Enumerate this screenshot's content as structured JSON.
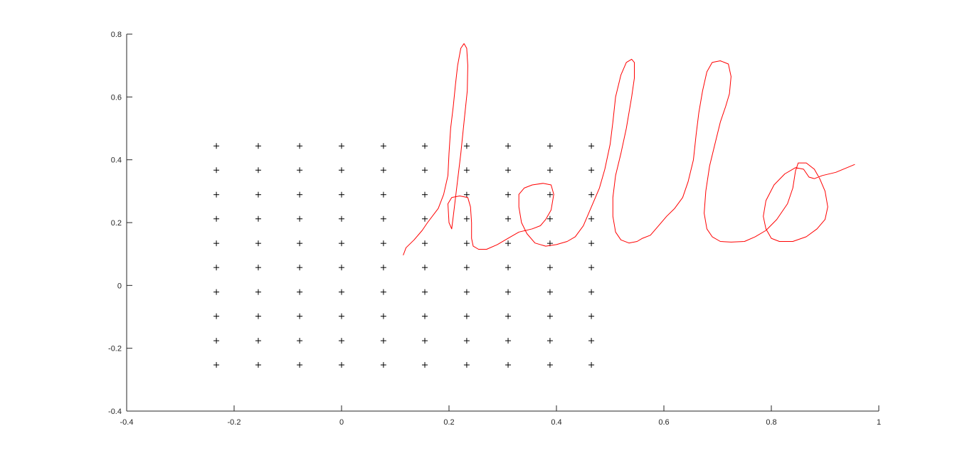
{
  "chart_data": {
    "type": "scatter",
    "title": "",
    "xlabel": "",
    "ylabel": "",
    "xlim": [
      -0.4,
      1.0
    ],
    "ylim": [
      -0.4,
      0.8
    ],
    "grid": false,
    "box": false,
    "x_ticks": [
      -0.4,
      -0.2,
      0,
      0.2,
      0.4,
      0.6,
      0.8,
      1.0
    ],
    "x_tick_labels": [
      "-0.4",
      "-0.2",
      "0",
      "0.2",
      "0.4",
      "0.6",
      "0.8",
      "1"
    ],
    "y_ticks": [
      -0.4,
      -0.2,
      0,
      0.2,
      0.4,
      0.6,
      0.8
    ],
    "y_tick_labels": [
      "-0.4",
      "-0.2",
      "0",
      "0.2",
      "0.4",
      "0.6",
      "0.8"
    ],
    "series": [
      {
        "marker": "plus",
        "color": "#000000",
        "grid_x": [
          -0.233,
          -0.155,
          -0.078,
          0,
          0.078,
          0.155,
          0.233,
          0.31,
          0.388,
          0.465
        ],
        "grid_y": [
          0.444,
          0.367,
          0.289,
          0.212,
          0.134,
          0.057,
          -0.021,
          -0.098,
          -0.176,
          -0.253
        ]
      },
      {
        "marker": "none",
        "line": "solid",
        "color": "#ff0000",
        "points": [
          [
            0.115,
            0.097
          ],
          [
            0.12,
            0.12
          ],
          [
            0.135,
            0.145
          ],
          [
            0.15,
            0.175
          ],
          [
            0.16,
            0.2
          ],
          [
            0.18,
            0.245
          ],
          [
            0.19,
            0.29
          ],
          [
            0.198,
            0.35
          ],
          [
            0.2,
            0.42
          ],
          [
            0.203,
            0.5
          ],
          [
            0.208,
            0.57
          ],
          [
            0.212,
            0.64
          ],
          [
            0.216,
            0.7
          ],
          [
            0.222,
            0.755
          ],
          [
            0.228,
            0.77
          ],
          [
            0.233,
            0.755
          ],
          [
            0.235,
            0.7
          ],
          [
            0.234,
            0.62
          ],
          [
            0.228,
            0.52
          ],
          [
            0.222,
            0.42
          ],
          [
            0.215,
            0.32
          ],
          [
            0.208,
            0.22
          ],
          [
            0.205,
            0.18
          ],
          [
            0.2,
            0.2
          ],
          [
            0.198,
            0.26
          ],
          [
            0.205,
            0.28
          ],
          [
            0.22,
            0.285
          ],
          [
            0.235,
            0.28
          ],
          [
            0.24,
            0.25
          ],
          [
            0.242,
            0.2
          ],
          [
            0.242,
            0.15
          ],
          [
            0.245,
            0.125
          ],
          [
            0.255,
            0.115
          ],
          [
            0.27,
            0.115
          ],
          [
            0.29,
            0.13
          ],
          [
            0.31,
            0.15
          ],
          [
            0.33,
            0.17
          ],
          [
            0.355,
            0.18
          ],
          [
            0.37,
            0.19
          ],
          [
            0.38,
            0.21
          ],
          [
            0.39,
            0.24
          ],
          [
            0.395,
            0.29
          ],
          [
            0.39,
            0.32
          ],
          [
            0.375,
            0.325
          ],
          [
            0.355,
            0.32
          ],
          [
            0.34,
            0.31
          ],
          [
            0.33,
            0.29
          ],
          [
            0.33,
            0.25
          ],
          [
            0.335,
            0.2
          ],
          [
            0.345,
            0.165
          ],
          [
            0.36,
            0.135
          ],
          [
            0.38,
            0.125
          ],
          [
            0.4,
            0.13
          ],
          [
            0.42,
            0.14
          ],
          [
            0.435,
            0.155
          ],
          [
            0.45,
            0.19
          ],
          [
            0.465,
            0.25
          ],
          [
            0.48,
            0.31
          ],
          [
            0.49,
            0.37
          ],
          [
            0.5,
            0.45
          ],
          [
            0.505,
            0.52
          ],
          [
            0.51,
            0.6
          ],
          [
            0.52,
            0.67
          ],
          [
            0.53,
            0.71
          ],
          [
            0.54,
            0.72
          ],
          [
            0.545,
            0.71
          ],
          [
            0.545,
            0.66
          ],
          [
            0.54,
            0.6
          ],
          [
            0.53,
            0.5
          ],
          [
            0.52,
            0.42
          ],
          [
            0.51,
            0.35
          ],
          [
            0.505,
            0.28
          ],
          [
            0.505,
            0.22
          ],
          [
            0.51,
            0.17
          ],
          [
            0.52,
            0.145
          ],
          [
            0.535,
            0.135
          ],
          [
            0.55,
            0.14
          ],
          [
            0.56,
            0.15
          ],
          [
            0.575,
            0.16
          ],
          [
            0.59,
            0.19
          ],
          [
            0.605,
            0.22
          ],
          [
            0.62,
            0.245
          ],
          [
            0.635,
            0.28
          ],
          [
            0.645,
            0.33
          ],
          [
            0.655,
            0.4
          ],
          [
            0.66,
            0.48
          ],
          [
            0.665,
            0.55
          ],
          [
            0.672,
            0.62
          ],
          [
            0.68,
            0.68
          ],
          [
            0.69,
            0.71
          ],
          [
            0.705,
            0.715
          ],
          [
            0.72,
            0.705
          ],
          [
            0.725,
            0.665
          ],
          [
            0.722,
            0.61
          ],
          [
            0.715,
            0.57
          ],
          [
            0.705,
            0.52
          ],
          [
            0.695,
            0.45
          ],
          [
            0.685,
            0.38
          ],
          [
            0.678,
            0.3
          ],
          [
            0.675,
            0.23
          ],
          [
            0.68,
            0.18
          ],
          [
            0.69,
            0.155
          ],
          [
            0.705,
            0.14
          ],
          [
            0.725,
            0.138
          ],
          [
            0.75,
            0.14
          ],
          [
            0.77,
            0.155
          ],
          [
            0.79,
            0.175
          ],
          [
            0.81,
            0.21
          ],
          [
            0.83,
            0.26
          ],
          [
            0.84,
            0.31
          ],
          [
            0.845,
            0.365
          ],
          [
            0.85,
            0.39
          ],
          [
            0.865,
            0.39
          ],
          [
            0.88,
            0.37
          ],
          [
            0.89,
            0.34
          ],
          [
            0.9,
            0.3
          ],
          [
            0.905,
            0.25
          ],
          [
            0.9,
            0.21
          ],
          [
            0.885,
            0.18
          ],
          [
            0.865,
            0.155
          ],
          [
            0.84,
            0.14
          ],
          [
            0.815,
            0.14
          ],
          [
            0.8,
            0.15
          ],
          [
            0.79,
            0.18
          ],
          [
            0.785,
            0.22
          ],
          [
            0.79,
            0.27
          ],
          [
            0.805,
            0.32
          ],
          [
            0.825,
            0.355
          ],
          [
            0.845,
            0.375
          ],
          [
            0.86,
            0.37
          ],
          [
            0.87,
            0.345
          ],
          [
            0.88,
            0.34
          ],
          [
            0.895,
            0.35
          ],
          [
            0.92,
            0.36
          ],
          [
            0.955,
            0.385
          ]
        ]
      }
    ]
  }
}
